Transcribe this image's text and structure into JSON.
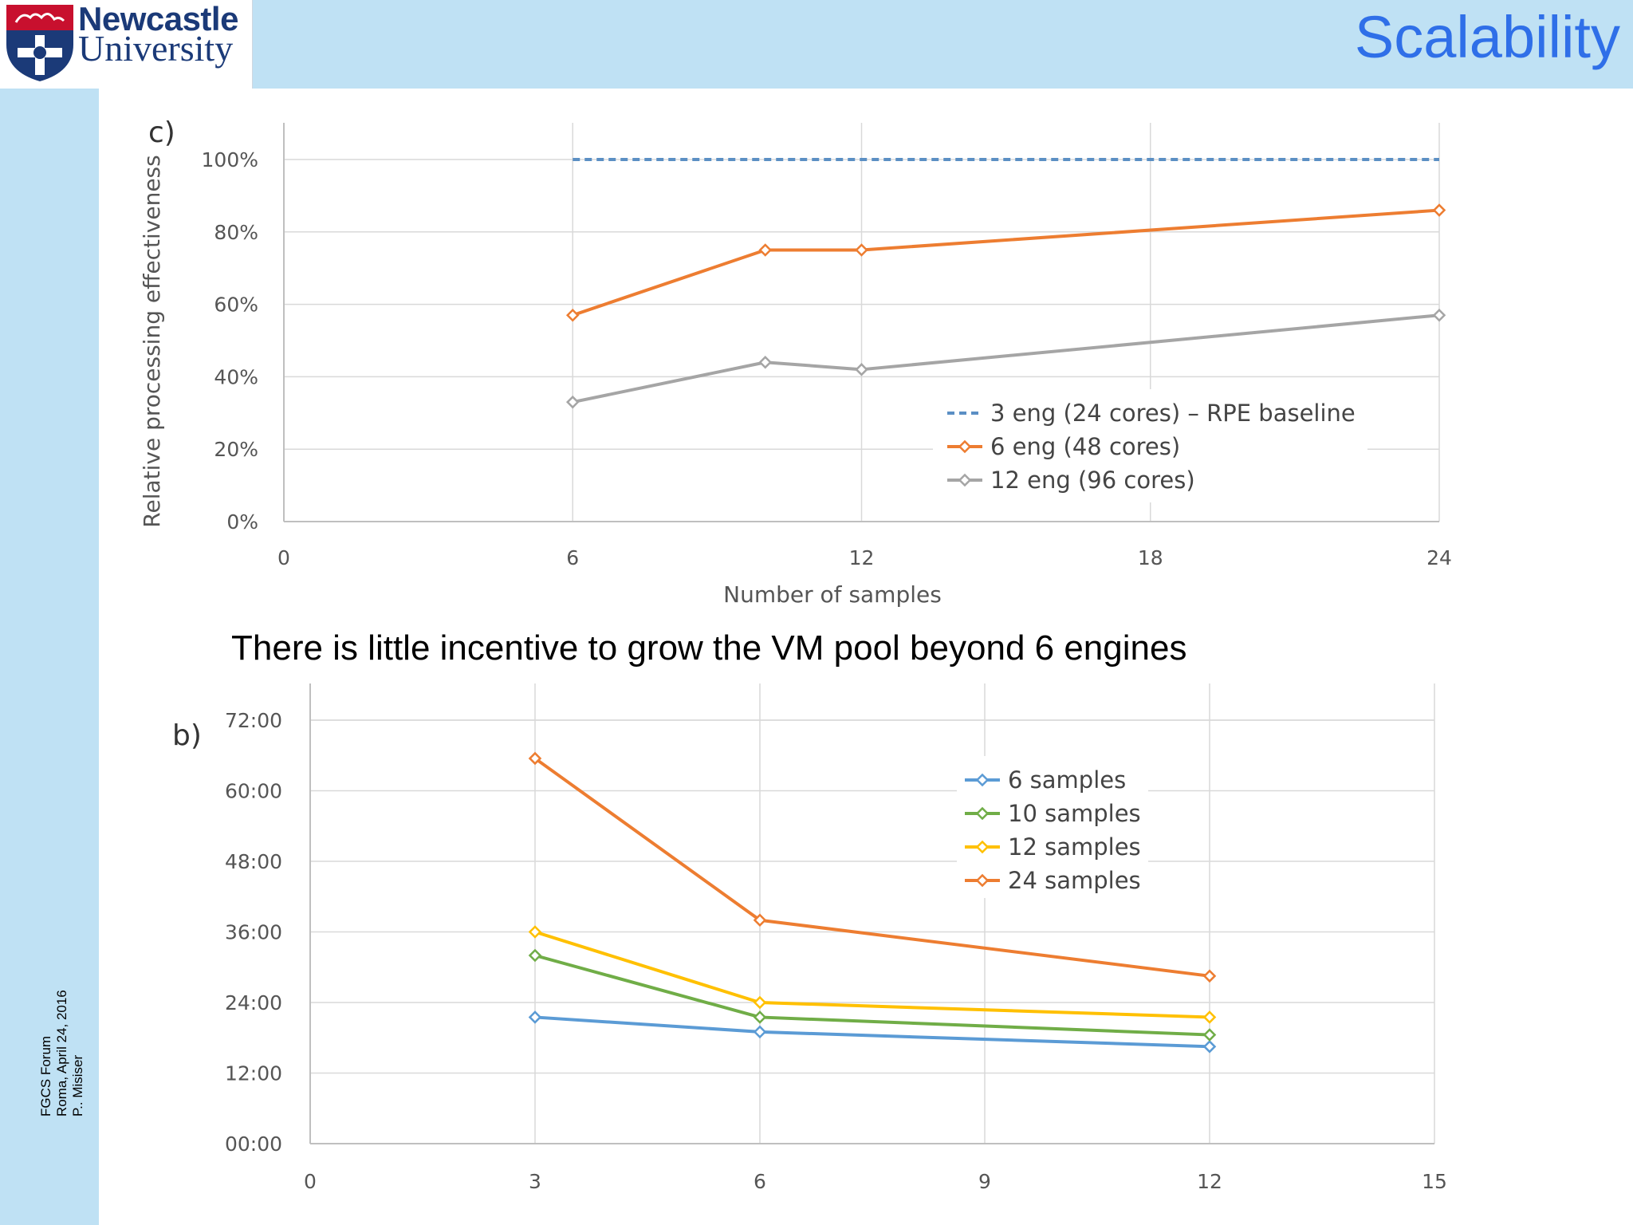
{
  "header": {
    "logo_line1": "Newcastle",
    "logo_line2": "University",
    "title": "Scalability"
  },
  "footer": {
    "line1": "FGCS Forum",
    "line2": "Roma, April 24, 2016",
    "line3": "P.. Misiser"
  },
  "caption": "There is little incentive to grow the VM pool beyond 6 engines",
  "colors": {
    "band": "#bfe1f4",
    "title": "#2f6fe8",
    "baseline": "#5b8fc4",
    "orange": "#ed7d31",
    "grey": "#a5a5a5",
    "blue": "#5b9bd5",
    "green": "#70ad47",
    "yellow": "#ffc000"
  },
  "chart_data": [
    {
      "id": "c",
      "panel_label": "c)",
      "type": "line",
      "xlabel": "Number of samples",
      "ylabel": "Relative processing effectiveness",
      "xlim": [
        0,
        24
      ],
      "ylim": [
        0,
        100
      ],
      "x_ticks": [
        "0",
        "6",
        "12",
        "18",
        "24"
      ],
      "y_ticks": [
        "0%",
        "20%",
        "40%",
        "60%",
        "80%",
        "100%"
      ],
      "grid": true,
      "legend_position": "lower-right",
      "series": [
        {
          "name": "3 eng (24 cores) – RPE baseline",
          "color": "#5b8fc4",
          "style": "dashed",
          "marker": "none",
          "x": [
            6,
            24
          ],
          "y": [
            100,
            100
          ]
        },
        {
          "name": "6 eng (48 cores)",
          "color": "#ed7d31",
          "style": "solid",
          "marker": "diamond",
          "x": [
            6,
            10,
            12,
            24
          ],
          "y": [
            57,
            75,
            75,
            86
          ]
        },
        {
          "name": "12 eng (96 cores)",
          "color": "#a5a5a5",
          "style": "solid",
          "marker": "diamond",
          "x": [
            6,
            10,
            12,
            24
          ],
          "y": [
            33,
            44,
            42,
            57
          ]
        }
      ]
    },
    {
      "id": "b",
      "panel_label": "b)",
      "type": "line",
      "xlabel": "",
      "ylabel": "",
      "xlim": [
        0,
        15
      ],
      "ylim": [
        0,
        72
      ],
      "x_ticks": [
        "0",
        "3",
        "6",
        "9",
        "12",
        "15"
      ],
      "y_ticks": [
        "00:00",
        "12:00",
        "24:00",
        "36:00",
        "48:00",
        "60:00",
        "72:00"
      ],
      "grid": true,
      "legend_position": "top-right",
      "series": [
        {
          "name": "6 samples",
          "color": "#5b9bd5",
          "marker": "diamond",
          "x": [
            3,
            6,
            12
          ],
          "y": [
            21.5,
            19,
            16.5
          ]
        },
        {
          "name": "10 samples",
          "color": "#70ad47",
          "marker": "diamond",
          "x": [
            3,
            6,
            12
          ],
          "y": [
            32,
            21.5,
            18.5
          ]
        },
        {
          "name": "12 samples",
          "color": "#ffc000",
          "marker": "diamond",
          "x": [
            3,
            6,
            12
          ],
          "y": [
            36,
            24,
            21.5
          ]
        },
        {
          "name": "24 samples",
          "color": "#ed7d31",
          "marker": "diamond",
          "x": [
            3,
            6,
            12
          ],
          "y": [
            65.5,
            38,
            28.5
          ]
        }
      ]
    }
  ]
}
